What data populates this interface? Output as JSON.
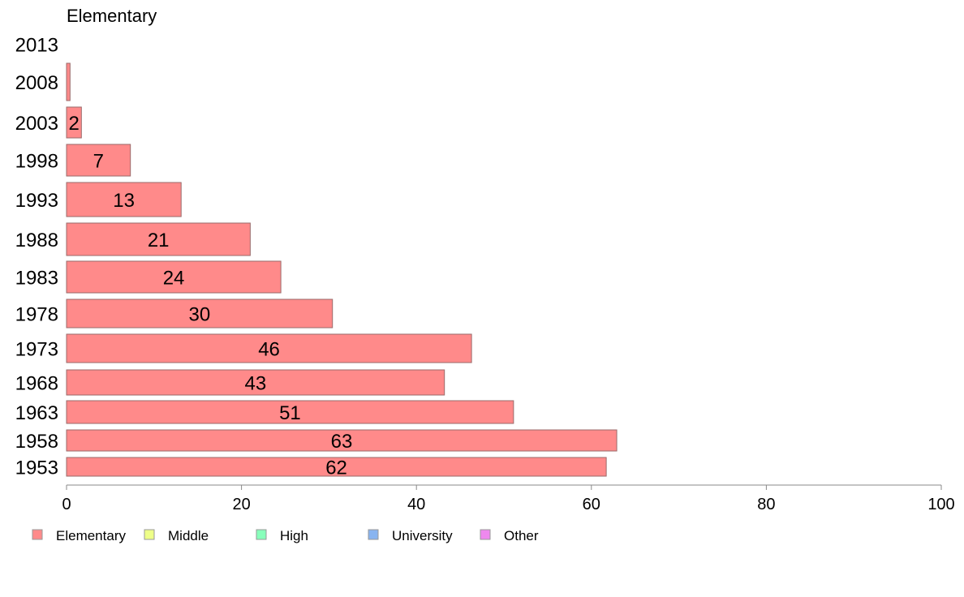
{
  "chart_data": {
    "type": "bar",
    "orientation": "horizontal",
    "title": "Elementary",
    "categories": [
      "1953",
      "1958",
      "1963",
      "1968",
      "1973",
      "1978",
      "1983",
      "1988",
      "1993",
      "1998",
      "2003",
      "2008",
      "2013"
    ],
    "series": [
      {
        "name": "Elementary",
        "color": "#ff8a8a",
        "values": [
          61.7,
          62.9,
          51.1,
          43.2,
          46.3,
          30.4,
          24.5,
          21.0,
          13.1,
          7.3,
          1.7,
          0.4,
          0
        ],
        "labels": [
          "62",
          "63",
          "51",
          "43",
          "46",
          "30",
          "24",
          "21",
          "13",
          "7",
          "2",
          "",
          ""
        ]
      }
    ],
    "xlim": [
      0,
      100
    ],
    "xticks": [
      "0",
      "20",
      "40",
      "60",
      "80",
      "100"
    ],
    "legend": {
      "position": "bottom-left",
      "items": [
        {
          "label": "Elementary",
          "color": "#ff8a8a"
        },
        {
          "label": "Middle",
          "color": "#eeff88"
        },
        {
          "label": "High",
          "color": "#88ffbb"
        },
        {
          "label": "University",
          "color": "#88b4f0"
        },
        {
          "label": "Other",
          "color": "#ee88ee"
        }
      ]
    },
    "grid": false
  }
}
